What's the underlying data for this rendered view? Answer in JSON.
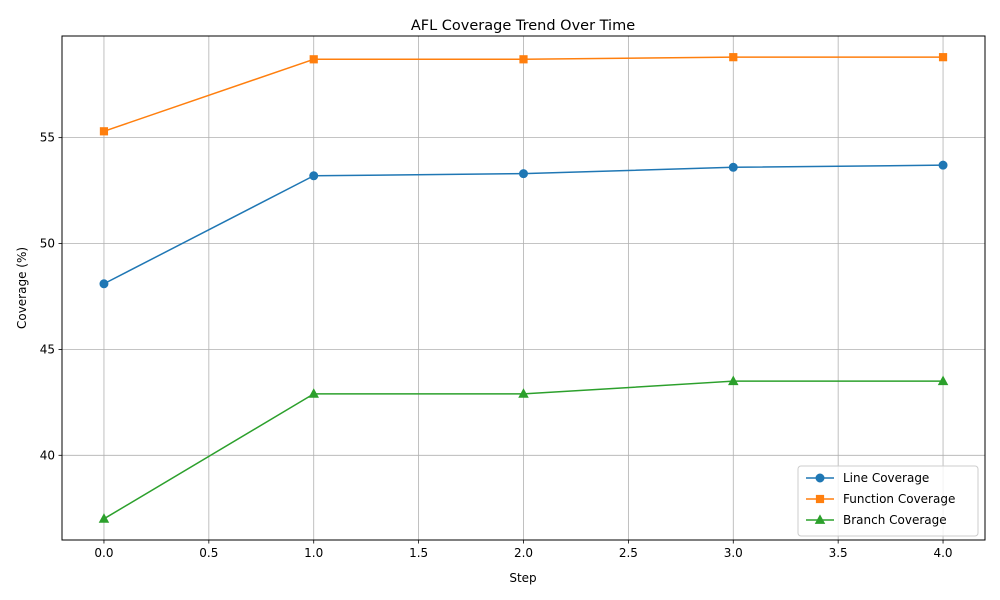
{
  "chart_data": {
    "type": "line",
    "title": "AFL Coverage Trend Over Time",
    "xlabel": "Step",
    "ylabel": "Coverage (%)",
    "xlim": [
      -0.2,
      4.2
    ],
    "ylim": [
      36.0,
      59.8
    ],
    "x": [
      0,
      1,
      2,
      3,
      4
    ],
    "x_ticks": [
      0.0,
      0.5,
      1.0,
      1.5,
      2.0,
      2.5,
      3.0,
      3.5,
      4.0
    ],
    "x_tick_labels": [
      "0.0",
      "0.5",
      "1.0",
      "1.5",
      "2.0",
      "2.5",
      "3.0",
      "3.5",
      "4.0"
    ],
    "y_ticks": [
      40,
      45,
      50,
      55
    ],
    "y_tick_labels": [
      "40",
      "45",
      "50",
      "55"
    ],
    "grid": true,
    "legend_position": "bottom-right",
    "series": [
      {
        "name": "Line Coverage",
        "color": "#1f77b4",
        "marker": "circle",
        "values": [
          48.1,
          53.2,
          53.3,
          53.6,
          53.7
        ]
      },
      {
        "name": "Function Coverage",
        "color": "#ff7f0e",
        "marker": "square",
        "values": [
          55.3,
          58.7,
          58.7,
          58.8,
          58.8
        ]
      },
      {
        "name": "Branch Coverage",
        "color": "#2ca02c",
        "marker": "triangle",
        "values": [
          37.0,
          42.9,
          42.9,
          43.5,
          43.5
        ]
      }
    ]
  }
}
